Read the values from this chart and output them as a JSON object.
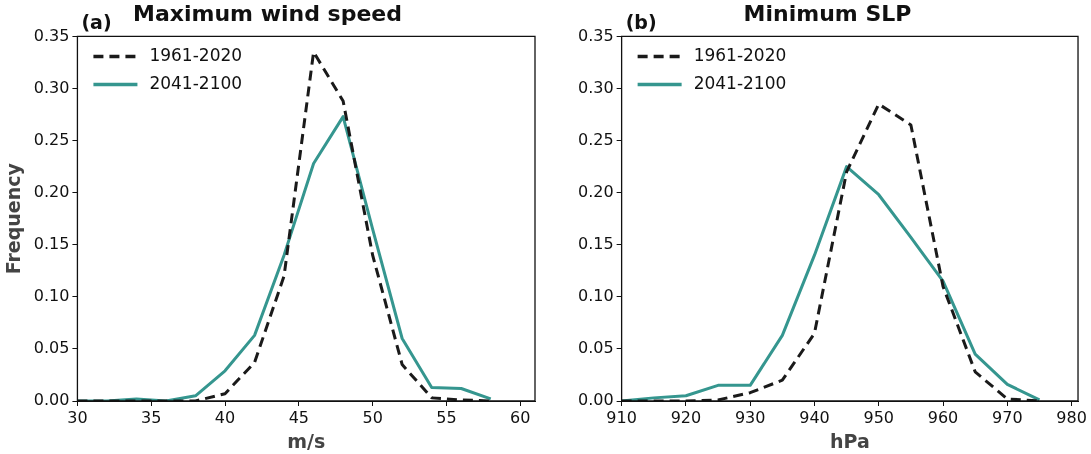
{
  "chart_data": [
    {
      "type": "line",
      "title": "Maximum wind speed",
      "annotations": [
        "(a)"
      ],
      "xlabel": "m/s",
      "ylabel": "Frequency",
      "legend": "top left",
      "grid": false,
      "marker": "none",
      "x": [
        30,
        32,
        34,
        36,
        38,
        40,
        42,
        44,
        46,
        48,
        50,
        52,
        54,
        56,
        58
      ],
      "series": [
        {
          "name": "1961-2020",
          "color": "#1a1a1a",
          "line_style": "dashed",
          "values": [
            0,
            0,
            0,
            0,
            0,
            0.007,
            0.037,
            0.12,
            0.335,
            0.288,
            0.14,
            0.035,
            0.003,
            0.001,
            0
          ]
        },
        {
          "name": "2041-2100",
          "color": "#35968f",
          "line_style": "solid",
          "values": [
            0,
            0,
            0.002,
            0,
            0.005,
            0.029,
            0.063,
            0.14,
            0.228,
            0.273,
            0.165,
            0.06,
            0.013,
            0.012,
            0.002
          ]
        }
      ],
      "xlim": [
        30,
        61
      ],
      "xticks": [
        30,
        35,
        40,
        45,
        50,
        55,
        60
      ],
      "ylim": [
        0,
        0.35
      ],
      "yticks": [
        {
          "value": 0,
          "label": "0.00"
        },
        {
          "value": 0.05,
          "label": "0.05"
        },
        {
          "value": 0.1,
          "label": "0.10"
        },
        {
          "value": 0.15,
          "label": "0.15"
        },
        {
          "value": 0.2,
          "label": "0.20"
        },
        {
          "value": 0.25,
          "label": "0.25"
        },
        {
          "value": 0.3,
          "label": "0.30"
        },
        {
          "value": 0.35,
          "label": "0.35"
        }
      ]
    },
    {
      "type": "line",
      "title": "Minimum SLP",
      "annotations": [
        "(b)"
      ],
      "xlabel": "hPa",
      "legend": "top left",
      "grid": false,
      "marker": "none",
      "x": [
        910,
        915,
        920,
        925,
        930,
        935,
        940,
        945,
        950,
        955,
        960,
        965,
        970,
        975
      ],
      "series": [
        {
          "name": "1961-2020",
          "color": "#1a1a1a",
          "line_style": "dashed",
          "values": [
            0,
            0,
            0,
            0.001,
            0.008,
            0.02,
            0.065,
            0.22,
            0.285,
            0.265,
            0.11,
            0.028,
            0.002,
            0
          ]
        },
        {
          "name": "2041-2100",
          "color": "#35968f",
          "line_style": "solid",
          "values": [
            0,
            0.003,
            0.005,
            0.015,
            0.015,
            0.063,
            0.14,
            0.225,
            0.198,
            0.157,
            0.115,
            0.045,
            0.016,
            0.001
          ]
        }
      ],
      "xlim": [
        910,
        981
      ],
      "xticks": [
        910,
        920,
        930,
        940,
        950,
        960,
        970,
        980
      ],
      "ylim": [
        0,
        0.35
      ],
      "yticks": [
        {
          "value": 0,
          "label": "0.00"
        },
        {
          "value": 0.05,
          "label": "0.05"
        },
        {
          "value": 0.1,
          "label": "0.10"
        },
        {
          "value": 0.15,
          "label": "0.15"
        },
        {
          "value": 0.2,
          "label": "0.20"
        },
        {
          "value": 0.25,
          "label": "0.25"
        },
        {
          "value": 0.3,
          "label": "0.30"
        },
        {
          "value": 0.35,
          "label": "0.35"
        }
      ]
    }
  ]
}
